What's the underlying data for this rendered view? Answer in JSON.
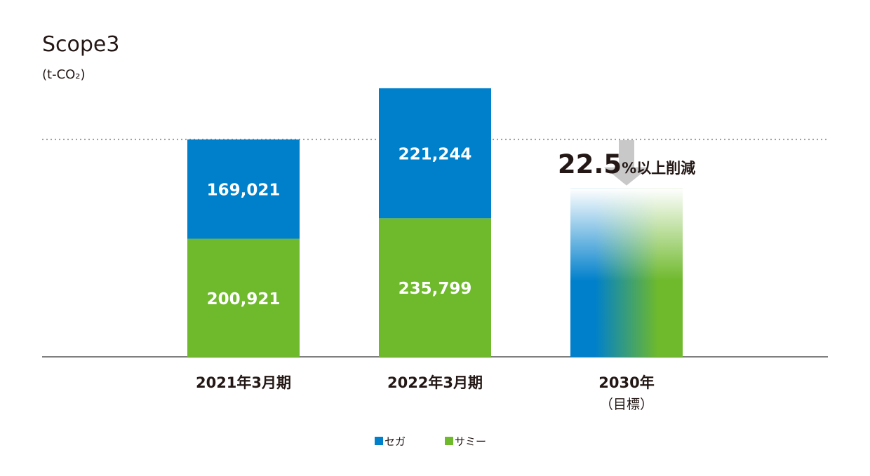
{
  "chart_data": {
    "type": "bar",
    "stacked": true,
    "title": "Scope3",
    "unit": "(t-CO₂)",
    "categories": [
      "2021年3月期",
      "2022年3月期",
      "2030年"
    ],
    "category_sublabels": [
      "",
      "",
      "（目標）"
    ],
    "series": [
      {
        "name": "サミー",
        "color": "#6fb92c",
        "values": [
          200921,
          235799,
          null
        ]
      },
      {
        "name": "セガ",
        "color": "#0080cb",
        "values": [
          169021,
          221244,
          null
        ]
      }
    ],
    "value_labels": {
      "サミー": [
        "200,921",
        "235,799",
        ""
      ],
      "セガ": [
        "169,021",
        "221,244",
        ""
      ]
    },
    "target": {
      "category": "2030年",
      "reduction_value": "22.5",
      "reduction_suffix": "%以上削減",
      "base_total": 369942,
      "reduction_percent": 22.5,
      "arrow_color": "#c8c8c8"
    },
    "reference_line": {
      "value": 369942,
      "style": "dotted"
    },
    "ylim": [
      0,
      470000
    ],
    "legend": {
      "placement": "bottom-center"
    },
    "grid": false
  }
}
